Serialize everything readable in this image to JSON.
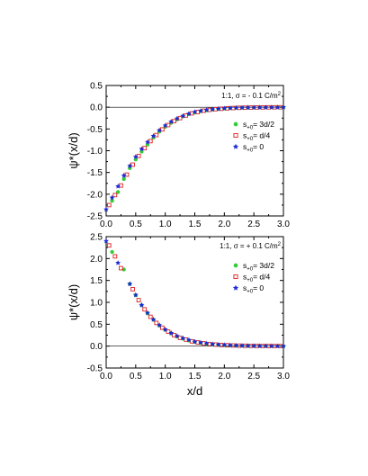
{
  "chart_data": [
    {
      "type": "scatter",
      "annotation": "1:1, σ = - 0.1 C/m²",
      "xlabel": "",
      "ylabel": "ψ*(x/d)",
      "xlim": [
        0.0,
        3.0
      ],
      "ylim": [
        -2.5,
        0.5
      ],
      "xticks": [
        "0.0",
        "0.5",
        "1.0",
        "1.5",
        "2.0",
        "2.5",
        "3.0"
      ],
      "yticks": [
        "-2.5",
        "-2.0",
        "-1.5",
        "-1.0",
        "-0.5",
        "0.0",
        "0.5"
      ],
      "legend_position": "center-right",
      "series": [
        {
          "name": "s+0= 3d/2",
          "marker": "circle-filled",
          "color": "#33cc33",
          "x": [
            0.1,
            0.2,
            0.3,
            0.4,
            0.5,
            0.6,
            0.7,
            0.8,
            0.9,
            1.0,
            1.1,
            1.2,
            1.3,
            1.4,
            1.5,
            1.6,
            1.7,
            1.8,
            1.9,
            2.0,
            2.1,
            2.2,
            2.3,
            2.4,
            2.5,
            2.6,
            2.7,
            2.8,
            2.9,
            3.0
          ],
          "y": [
            -2.15,
            -1.95,
            -1.65,
            -1.4,
            -1.2,
            -1.02,
            -0.86,
            -0.7,
            -0.56,
            -0.45,
            -0.36,
            -0.28,
            -0.21,
            -0.16,
            -0.12,
            -0.09,
            -0.07,
            -0.05,
            -0.04,
            -0.03,
            -0.02,
            -0.015,
            -0.01,
            -0.008,
            -0.006,
            -0.005,
            -0.004,
            -0.003,
            -0.002,
            -0.001
          ]
        },
        {
          "name": "s+0= d/4",
          "marker": "square-open",
          "color": "#e02020",
          "x": [
            0.05,
            0.15,
            0.25,
            0.35,
            0.45,
            0.55,
            0.65,
            0.75,
            0.85,
            0.95,
            1.05,
            1.15,
            1.25,
            1.35,
            1.45,
            1.55,
            1.65,
            1.75,
            1.85,
            1.95,
            2.05,
            2.15,
            2.25,
            2.35,
            2.45,
            2.55,
            2.65,
            2.75,
            2.85,
            2.95
          ],
          "y": [
            -2.25,
            -2.02,
            -1.8,
            -1.55,
            -1.32,
            -1.12,
            -0.94,
            -0.78,
            -0.64,
            -0.51,
            -0.41,
            -0.32,
            -0.25,
            -0.19,
            -0.14,
            -0.11,
            -0.08,
            -0.06,
            -0.045,
            -0.035,
            -0.025,
            -0.018,
            -0.013,
            -0.01,
            -0.007,
            -0.005,
            -0.004,
            -0.003,
            -0.002,
            -0.001
          ]
        },
        {
          "name": "s+0= 0",
          "marker": "star-filled",
          "color": "#1a2ad6",
          "x": [
            0.0,
            0.1,
            0.2,
            0.3,
            0.4,
            0.5,
            0.6,
            0.7,
            0.8,
            0.9,
            1.0,
            1.1,
            1.2,
            1.3,
            1.4,
            1.5,
            1.6,
            1.7,
            1.8,
            1.9,
            2.0,
            2.1,
            2.2,
            2.3,
            2.4,
            2.5,
            2.6,
            2.7,
            2.8,
            2.9,
            3.0
          ],
          "y": [
            -2.35,
            -2.08,
            -1.82,
            -1.57,
            -1.35,
            -1.14,
            -0.96,
            -0.8,
            -0.66,
            -0.53,
            -0.42,
            -0.33,
            -0.26,
            -0.2,
            -0.15,
            -0.11,
            -0.085,
            -0.065,
            -0.05,
            -0.038,
            -0.028,
            -0.02,
            -0.015,
            -0.011,
            -0.008,
            -0.006,
            -0.004,
            -0.003,
            -0.002,
            -0.001,
            0.0
          ]
        }
      ]
    },
    {
      "type": "scatter",
      "annotation": "1:1, σ = + 0.1 C/m²",
      "xlabel": "x/d",
      "ylabel": "ψ*(x/d)",
      "xlim": [
        0.0,
        3.0
      ],
      "ylim": [
        -0.5,
        2.5
      ],
      "xticks": [
        "0.0",
        "0.5",
        "1.0",
        "1.5",
        "2.0",
        "2.5",
        "3.0"
      ],
      "yticks": [
        "-0.5",
        "0.0",
        "0.5",
        "1.0",
        "1.5",
        "2.0",
        "2.5"
      ],
      "legend_position": "top-right",
      "series": [
        {
          "name": "s+0= 3d/2",
          "marker": "circle-filled",
          "color": "#33cc33",
          "x": [
            0.1,
            0.3,
            0.4,
            0.5,
            0.6,
            0.7,
            0.8,
            0.9,
            1.0,
            1.1,
            1.2,
            1.3,
            1.4,
            1.5,
            1.6,
            1.7,
            1.8,
            1.9,
            2.0,
            2.1,
            2.2,
            2.3,
            2.4,
            2.5,
            2.6,
            2.7,
            2.8,
            2.9,
            3.0
          ],
          "y": [
            2.15,
            1.75,
            1.42,
            1.16,
            0.93,
            0.75,
            0.6,
            0.47,
            0.37,
            0.29,
            0.22,
            0.17,
            0.13,
            0.1,
            0.07,
            0.055,
            0.04,
            0.03,
            0.022,
            0.016,
            0.012,
            0.009,
            0.006,
            0.005,
            0.003,
            0.002,
            0.002,
            0.001,
            0.001
          ]
        },
        {
          "name": "s+0= d/4",
          "marker": "square-open",
          "color": "#e02020",
          "x": [
            0.05,
            0.15,
            0.25,
            0.45,
            0.55,
            0.65,
            0.75,
            0.85,
            0.95,
            1.05,
            1.15,
            1.25,
            1.35,
            1.45,
            1.55,
            1.65,
            1.75,
            1.85,
            1.95,
            2.05,
            2.15,
            2.25,
            2.35,
            2.45,
            2.55,
            2.65,
            2.75,
            2.85,
            2.95
          ],
          "y": [
            2.3,
            2.05,
            1.78,
            1.3,
            1.05,
            0.84,
            0.67,
            0.53,
            0.42,
            0.33,
            0.25,
            0.19,
            0.15,
            0.11,
            0.085,
            0.065,
            0.048,
            0.036,
            0.027,
            0.02,
            0.015,
            0.011,
            0.008,
            0.006,
            0.004,
            0.003,
            0.002,
            0.0015,
            0.001
          ]
        },
        {
          "name": "s+0= 0",
          "marker": "star-filled",
          "color": "#1a2ad6",
          "x": [
            0.0,
            0.2,
            0.4,
            0.5,
            0.6,
            0.7,
            0.8,
            0.9,
            1.0,
            1.1,
            1.2,
            1.3,
            1.4,
            1.5,
            1.6,
            1.7,
            1.8,
            1.9,
            2.0,
            2.1,
            2.2,
            2.3,
            2.4,
            2.5,
            2.6,
            2.7,
            2.8,
            2.9,
            3.0
          ],
          "y": [
            2.4,
            1.9,
            1.42,
            1.17,
            0.94,
            0.76,
            0.61,
            0.48,
            0.38,
            0.3,
            0.23,
            0.18,
            0.14,
            0.1,
            0.08,
            0.06,
            0.045,
            0.033,
            0.025,
            0.018,
            0.013,
            0.01,
            0.007,
            0.005,
            0.004,
            0.003,
            0.002,
            0.001,
            0.0
          ]
        }
      ]
    }
  ]
}
